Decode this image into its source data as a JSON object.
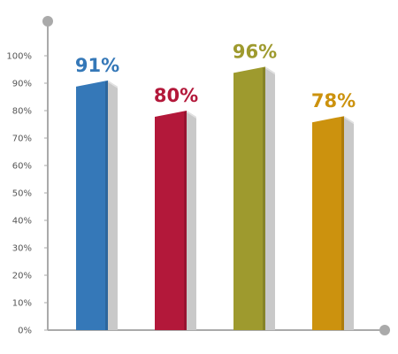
{
  "chart_data": {
    "type": "bar",
    "title": "",
    "xlabel": "",
    "ylabel": "",
    "ylim": [
      0,
      100
    ],
    "yticks": [
      0,
      10,
      20,
      30,
      40,
      50,
      60,
      70,
      80,
      90,
      100
    ],
    "ytick_labels": [
      "0%",
      "10%",
      "20%",
      "30%",
      "40%",
      "50%",
      "60%",
      "70%",
      "80%",
      "90%",
      "100%"
    ],
    "grid": false,
    "bars": [
      {
        "value": 91,
        "label": "91%",
        "color": "#3578b8"
      },
      {
        "value": 80,
        "label": "80%",
        "color": "#b3183a"
      },
      {
        "value": 96,
        "label": "96%",
        "color": "#9e9a2e"
      },
      {
        "value": 78,
        "label": "78%",
        "color": "#cc920e"
      }
    ],
    "axis_color": "#aaaaaa"
  }
}
